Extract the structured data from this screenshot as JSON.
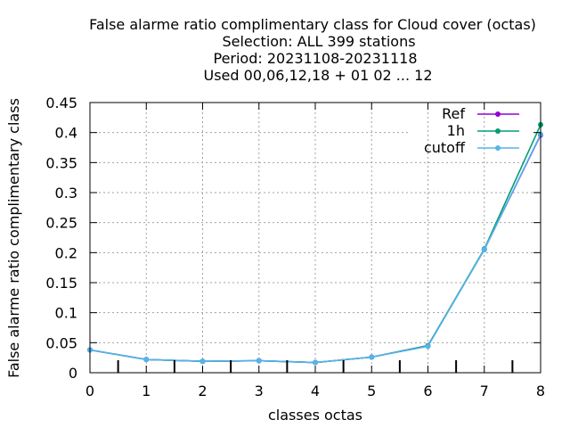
{
  "chart_data": {
    "type": "line",
    "title_lines": [
      "False alarme ratio complimentary class  for Cloud cover (octas)",
      "Selection: ALL     399 stations",
      "Period: 20231108-20231118",
      "Used  00,06,12,18 + 01 02 ... 12"
    ],
    "xlabel": "classes octas",
    "ylabel": "False alarme ratio complimentary class",
    "xlim": [
      0,
      8
    ],
    "ylim": [
      0,
      0.45
    ],
    "x_ticks": [
      "0",
      "1",
      "2",
      "3",
      "4",
      "5",
      "6",
      "7",
      "8"
    ],
    "y_ticks": [
      "0",
      "0.05",
      "0.1",
      "0.15",
      "0.2",
      "0.25",
      "0.3",
      "0.35",
      "0.4",
      "0.45"
    ],
    "grid": true,
    "legend_position": "top-right",
    "x": [
      0,
      1,
      2,
      3,
      4,
      5,
      6,
      7,
      8
    ],
    "series": [
      {
        "name": "Ref",
        "color": "#9400d3",
        "values": [
          0.038,
          0.022,
          0.019,
          0.02,
          0.017,
          0.026,
          0.045,
          0.205,
          0.396
        ]
      },
      {
        "name": "1h",
        "color": "#009e73",
        "values": [
          0.038,
          0.022,
          0.019,
          0.02,
          0.017,
          0.026,
          0.045,
          0.206,
          0.413
        ]
      },
      {
        "name": "cutoff",
        "color": "#56b4e9",
        "values": [
          0.038,
          0.022,
          0.019,
          0.02,
          0.017,
          0.026,
          0.044,
          0.205,
          0.397
        ]
      }
    ],
    "minor_x_ticks": [
      0.5,
      1.5,
      2.5,
      3.5,
      4.5,
      5.5,
      6.5,
      7.5
    ]
  }
}
